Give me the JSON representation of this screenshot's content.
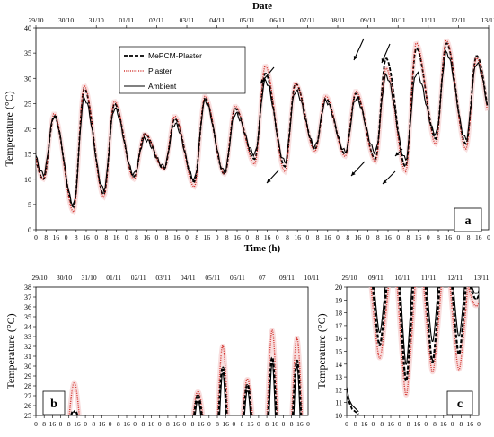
{
  "colors": {
    "mepcm": "#000000",
    "plaster": "#d2322d",
    "ambient": "#000000",
    "plaster_shade": "#f4c6c6"
  },
  "chart_data": [
    {
      "type": "line",
      "panel": "a",
      "xlabel": "Time (h)",
      "x2label": "Date",
      "ylabel": "Temperature (°C)",
      "ylim": [
        0,
        40
      ],
      "yticks": [
        0,
        5,
        10,
        15,
        20,
        25,
        30,
        35,
        40
      ],
      "dates": [
        "29/10",
        "30/10",
        "31/10",
        "01/11",
        "02/11",
        "03/11",
        "04/11",
        "05/11",
        "06/11",
        "07/11",
        "08/11",
        "09/11",
        "10/11",
        "11/11",
        "12/11",
        "13/11"
      ],
      "hour_labels": [
        "0",
        "8",
        "16"
      ],
      "legend": [
        "MePCM-Plaster",
        "Plaster",
        "Ambient"
      ],
      "legend_position": "top-left",
      "series": [
        {
          "name": "MePCM-Plaster",
          "style": "dashed",
          "peaks": [
            22.5,
            28,
            25,
            19,
            22,
            26,
            24,
            31,
            29,
            26,
            27,
            34,
            36,
            37,
            34.5
          ],
          "mins": [
            10,
            4.5,
            7,
            10.5,
            12,
            9.5,
            11,
            14,
            12.5,
            16,
            15,
            14,
            12.5,
            18,
            17
          ]
        },
        {
          "name": "Plaster",
          "style": "dotted",
          "peaks": [
            23,
            28.5,
            25.5,
            19,
            22.5,
            26.5,
            24.5,
            32.5,
            29,
            26.5,
            27.5,
            32,
            37,
            37.5,
            34
          ],
          "mins": [
            10,
            3.5,
            6.5,
            10,
            12,
            8.5,
            11,
            13,
            11.5,
            15.5,
            14.5,
            13.5,
            11.5,
            17,
            16
          ]
        },
        {
          "name": "Ambient",
          "style": "solid",
          "peaks": [
            22.5,
            26,
            24,
            18,
            21,
            25.5,
            23,
            29.5,
            27.5,
            25.5,
            26,
            30.5,
            31,
            35,
            33
          ],
          "mins": [
            11,
            5,
            8,
            11,
            12.5,
            10,
            11.5,
            15,
            13.5,
            16.5,
            15.5,
            15.5,
            14,
            19,
            18
          ]
        }
      ],
      "annotations": [
        "arrow",
        "arrow",
        "arrow",
        "arrow",
        "arrow",
        "arrow",
        "arrow"
      ]
    },
    {
      "type": "line",
      "panel": "b",
      "ylabel": "Temperature (°C)",
      "ylim": [
        25,
        38
      ],
      "yticks": [
        25,
        26,
        27,
        28,
        29,
        30,
        31,
        32,
        33,
        34,
        35,
        36,
        37,
        38
      ],
      "dates": [
        "29/10",
        "30/10",
        "31/10",
        "01/11",
        "02/11",
        "03/11",
        "04/11",
        "05/11",
        "06/11",
        "07",
        "09/11",
        "10/11"
      ],
      "hour_labels": [
        "0",
        "8",
        "16"
      ]
    },
    {
      "type": "line",
      "panel": "c",
      "ylabel": "Temperature (°C)",
      "ylim": [
        10,
        20
      ],
      "yticks": [
        10,
        11,
        12,
        13,
        14,
        15,
        16,
        17,
        18,
        19,
        20
      ],
      "dates": [
        "29/10",
        "09/11",
        "10/11",
        "11/11",
        "12/11",
        "13/11"
      ],
      "hour_labels": [
        "0",
        "8",
        "16"
      ]
    }
  ]
}
